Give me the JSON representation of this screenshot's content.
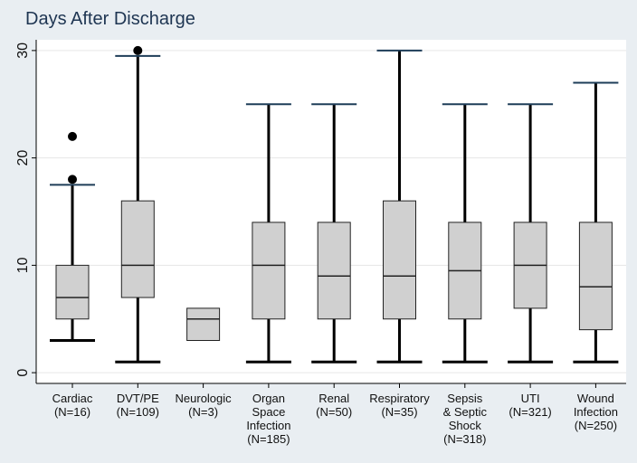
{
  "chart_data": {
    "type": "boxplot",
    "title": "Days After Discharge",
    "xlabel": "",
    "ylabel": "",
    "ylim": [
      -1,
      31
    ],
    "yticks": [
      0,
      10,
      20,
      30
    ],
    "grid": true,
    "colors": {
      "box": "#d0d0d0",
      "whisker": "#000000",
      "cap_top": "#1e3d58",
      "outlier": "#000000",
      "grid": "#e6e6e6",
      "plot_bg": "#ffffff",
      "background": "#e9eef2"
    },
    "categories": [
      {
        "label": [
          "Cardiac",
          "(N=16)"
        ],
        "min": 3,
        "q1": 5,
        "median": 7,
        "q3": 10,
        "max": 17.5,
        "outliers": [
          18,
          22
        ]
      },
      {
        "label": [
          "DVT/PE",
          "(N=109)"
        ],
        "min": 1,
        "q1": 7,
        "median": 10,
        "q3": 16,
        "max": 29.5,
        "outliers": [
          30
        ]
      },
      {
        "label": [
          "Neurologic",
          "(N=3)"
        ],
        "min": 3,
        "q1": 3,
        "median": 5,
        "q3": 6,
        "max": 6,
        "outliers": []
      },
      {
        "label": [
          "Organ",
          "Space",
          "Infection",
          "(N=185)"
        ],
        "min": 1,
        "q1": 5,
        "median": 10,
        "q3": 14,
        "max": 25,
        "outliers": []
      },
      {
        "label": [
          "Renal",
          "(N=50)"
        ],
        "min": 1,
        "q1": 5,
        "median": 9,
        "q3": 14,
        "max": 25,
        "outliers": []
      },
      {
        "label": [
          "Respiratory",
          "(N=35)"
        ],
        "min": 1,
        "q1": 5,
        "median": 9,
        "q3": 16,
        "max": 30,
        "outliers": []
      },
      {
        "label": [
          "Sepsis",
          "& Septic",
          "Shock",
          "(N=318)"
        ],
        "min": 1,
        "q1": 5,
        "median": 9.5,
        "q3": 14,
        "max": 25,
        "outliers": []
      },
      {
        "label": [
          "UTI",
          "(N=321)"
        ],
        "min": 1,
        "q1": 6,
        "median": 10,
        "q3": 14,
        "max": 25,
        "outliers": []
      },
      {
        "label": [
          "Wound",
          "Infection",
          "(N=250)"
        ],
        "min": 1,
        "q1": 4,
        "median": 8,
        "q3": 14,
        "max": 27,
        "outliers": []
      }
    ]
  }
}
